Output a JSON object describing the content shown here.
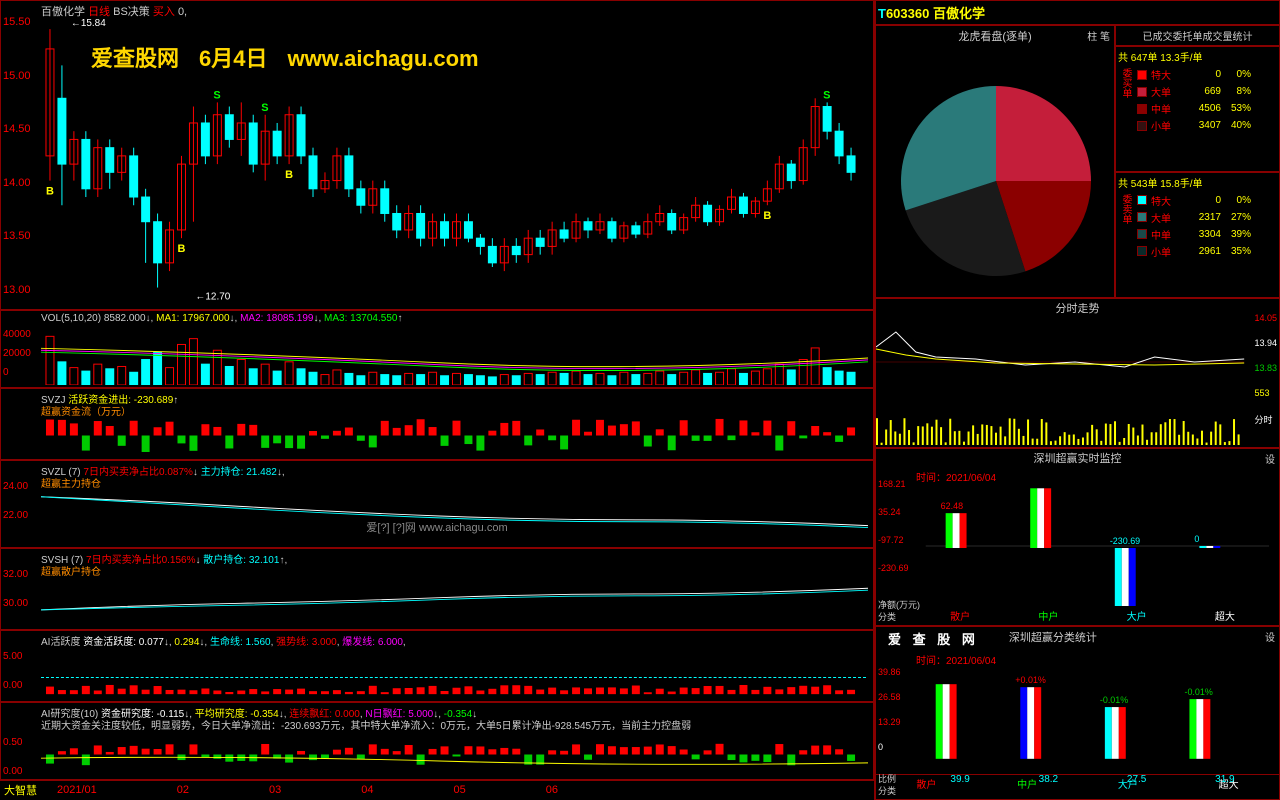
{
  "stock": {
    "code": "603360",
    "name": "百傲化学"
  },
  "watermark": {
    "site": "爱查股网",
    "date": "6月4日",
    "url": "www.aichagu.com"
  },
  "kline": {
    "title": "百傲化学",
    "period": "日线",
    "strategy": "BS决策",
    "action": "买入",
    "val": "0,",
    "yaxis": [
      "15.50",
      "15.00",
      "14.50",
      "14.00",
      "13.50",
      "13.00"
    ],
    "high_label": "15.84",
    "low_label": "12.70",
    "colors": {
      "up": "#ff0000",
      "down": "#00ffff",
      "bg": "#000000",
      "grid": "#333333"
    },
    "candles": [
      {
        "o": 14.3,
        "c": 15.6,
        "h": 15.84,
        "l": 14.0,
        "up": true
      },
      {
        "o": 15.0,
        "c": 14.2,
        "h": 15.4,
        "l": 13.7,
        "up": false
      },
      {
        "o": 14.2,
        "c": 14.5,
        "h": 14.6,
        "l": 14.0,
        "up": true
      },
      {
        "o": 14.5,
        "c": 13.9,
        "h": 14.6,
        "l": 13.8,
        "up": false
      },
      {
        "o": 13.9,
        "c": 14.4,
        "h": 14.5,
        "l": 13.8,
        "up": true
      },
      {
        "o": 14.4,
        "c": 14.1,
        "h": 14.5,
        "l": 13.9,
        "up": false
      },
      {
        "o": 14.1,
        "c": 14.3,
        "h": 14.4,
        "l": 14.0,
        "up": true
      },
      {
        "o": 14.3,
        "c": 13.8,
        "h": 14.4,
        "l": 13.7,
        "up": false
      },
      {
        "o": 13.8,
        "c": 13.5,
        "h": 13.9,
        "l": 13.0,
        "up": false
      },
      {
        "o": 13.5,
        "c": 13.0,
        "h": 13.6,
        "l": 12.7,
        "up": false
      },
      {
        "o": 13.0,
        "c": 13.4,
        "h": 13.5,
        "l": 12.9,
        "up": true
      },
      {
        "o": 13.4,
        "c": 14.2,
        "h": 14.3,
        "l": 13.3,
        "up": true
      },
      {
        "o": 14.2,
        "c": 14.7,
        "h": 14.9,
        "l": 13.5,
        "up": true
      },
      {
        "o": 14.7,
        "c": 14.3,
        "h": 14.8,
        "l": 14.2,
        "up": false
      },
      {
        "o": 14.3,
        "c": 14.8,
        "h": 14.95,
        "l": 14.2,
        "up": true
      },
      {
        "o": 14.8,
        "c": 14.5,
        "h": 14.9,
        "l": 14.4,
        "up": false
      },
      {
        "o": 14.5,
        "c": 14.7,
        "h": 14.95,
        "l": 14.3,
        "up": true
      },
      {
        "o": 14.7,
        "c": 14.2,
        "h": 14.8,
        "l": 14.1,
        "up": false
      },
      {
        "o": 14.2,
        "c": 14.6,
        "h": 14.8,
        "l": 14.0,
        "up": true
      },
      {
        "o": 14.6,
        "c": 14.3,
        "h": 14.7,
        "l": 14.2,
        "up": false
      },
      {
        "o": 14.3,
        "c": 14.8,
        "h": 14.9,
        "l": 14.2,
        "up": true
      },
      {
        "o": 14.8,
        "c": 14.3,
        "h": 14.9,
        "l": 14.2,
        "up": false
      },
      {
        "o": 14.3,
        "c": 13.9,
        "h": 14.4,
        "l": 13.8,
        "up": false
      },
      {
        "o": 13.9,
        "c": 14.0,
        "h": 14.1,
        "l": 13.85,
        "up": true
      },
      {
        "o": 14.0,
        "c": 14.3,
        "h": 14.4,
        "l": 13.9,
        "up": true
      },
      {
        "o": 14.3,
        "c": 13.9,
        "h": 14.4,
        "l": 13.8,
        "up": false
      },
      {
        "o": 13.9,
        "c": 13.7,
        "h": 14.0,
        "l": 13.6,
        "up": false
      },
      {
        "o": 13.7,
        "c": 13.9,
        "h": 14.0,
        "l": 13.6,
        "up": true
      },
      {
        "o": 13.9,
        "c": 13.6,
        "h": 14.0,
        "l": 13.5,
        "up": false
      },
      {
        "o": 13.6,
        "c": 13.4,
        "h": 13.7,
        "l": 13.3,
        "up": false
      },
      {
        "o": 13.4,
        "c": 13.6,
        "h": 13.7,
        "l": 13.3,
        "up": true
      },
      {
        "o": 13.6,
        "c": 13.3,
        "h": 13.7,
        "l": 13.2,
        "up": false
      },
      {
        "o": 13.3,
        "c": 13.5,
        "h": 13.6,
        "l": 13.2,
        "up": true
      },
      {
        "o": 13.5,
        "c": 13.3,
        "h": 13.6,
        "l": 13.2,
        "up": false
      },
      {
        "o": 13.3,
        "c": 13.5,
        "h": 13.6,
        "l": 13.2,
        "up": true
      },
      {
        "o": 13.5,
        "c": 13.3,
        "h": 13.6,
        "l": 13.25,
        "up": false
      },
      {
        "o": 13.3,
        "c": 13.2,
        "h": 13.35,
        "l": 13.1,
        "up": false
      },
      {
        "o": 13.2,
        "c": 13.0,
        "h": 13.3,
        "l": 12.95,
        "up": false
      },
      {
        "o": 13.0,
        "c": 13.2,
        "h": 13.3,
        "l": 12.9,
        "up": true
      },
      {
        "o": 13.2,
        "c": 13.1,
        "h": 13.3,
        "l": 13.0,
        "up": false
      },
      {
        "o": 13.1,
        "c": 13.3,
        "h": 13.4,
        "l": 13.0,
        "up": true
      },
      {
        "o": 13.3,
        "c": 13.2,
        "h": 13.4,
        "l": 13.1,
        "up": false
      },
      {
        "o": 13.2,
        "c": 13.4,
        "h": 13.5,
        "l": 13.1,
        "up": true
      },
      {
        "o": 13.4,
        "c": 13.3,
        "h": 13.5,
        "l": 13.25,
        "up": false
      },
      {
        "o": 13.3,
        "c": 13.5,
        "h": 13.6,
        "l": 13.25,
        "up": true
      },
      {
        "o": 13.5,
        "c": 13.4,
        "h": 13.55,
        "l": 13.3,
        "up": false
      },
      {
        "o": 13.4,
        "c": 13.5,
        "h": 13.6,
        "l": 13.35,
        "up": true
      },
      {
        "o": 13.5,
        "c": 13.3,
        "h": 13.55,
        "l": 13.25,
        "up": false
      },
      {
        "o": 13.3,
        "c": 13.45,
        "h": 13.5,
        "l": 13.25,
        "up": true
      },
      {
        "o": 13.45,
        "c": 13.35,
        "h": 13.5,
        "l": 13.3,
        "up": false
      },
      {
        "o": 13.35,
        "c": 13.5,
        "h": 13.6,
        "l": 13.3,
        "up": true
      },
      {
        "o": 13.5,
        "c": 13.6,
        "h": 13.7,
        "l": 13.45,
        "up": true
      },
      {
        "o": 13.6,
        "c": 13.4,
        "h": 13.65,
        "l": 13.35,
        "up": false
      },
      {
        "o": 13.4,
        "c": 13.55,
        "h": 13.6,
        "l": 13.35,
        "up": true
      },
      {
        "o": 13.55,
        "c": 13.7,
        "h": 13.8,
        "l": 13.5,
        "up": true
      },
      {
        "o": 13.7,
        "c": 13.5,
        "h": 13.75,
        "l": 13.45,
        "up": false
      },
      {
        "o": 13.5,
        "c": 13.65,
        "h": 13.7,
        "l": 13.45,
        "up": true
      },
      {
        "o": 13.65,
        "c": 13.8,
        "h": 13.9,
        "l": 13.6,
        "up": true
      },
      {
        "o": 13.8,
        "c": 13.6,
        "h": 13.85,
        "l": 13.55,
        "up": false
      },
      {
        "o": 13.6,
        "c": 13.75,
        "h": 13.8,
        "l": 13.55,
        "up": true
      },
      {
        "o": 13.75,
        "c": 13.9,
        "h": 14.0,
        "l": 13.7,
        "up": true
      },
      {
        "o": 13.9,
        "c": 14.2,
        "h": 14.3,
        "l": 13.85,
        "up": true
      },
      {
        "o": 14.2,
        "c": 14.0,
        "h": 14.25,
        "l": 13.9,
        "up": false
      },
      {
        "o": 14.0,
        "c": 14.4,
        "h": 14.5,
        "l": 13.95,
        "up": true
      },
      {
        "o": 14.4,
        "c": 14.9,
        "h": 15.0,
        "l": 14.3,
        "up": true
      },
      {
        "o": 14.9,
        "c": 14.6,
        "h": 14.95,
        "l": 14.5,
        "up": false
      },
      {
        "o": 14.6,
        "c": 14.3,
        "h": 14.7,
        "l": 14.2,
        "up": false
      },
      {
        "o": 14.3,
        "c": 14.1,
        "h": 14.4,
        "l": 14.0,
        "up": false
      }
    ]
  },
  "vol": {
    "label": "VOL(5,10,20)",
    "val": "8582.000",
    "ma1_lbl": "MA1:",
    "ma1": "17967.000",
    "ma2_lbl": "MA2:",
    "ma2": "18085.199",
    "ma3_lbl": "MA3:",
    "ma3": "13704.550",
    "yaxis": [
      "40000",
      "20000",
      "0"
    ],
    "bars": [
      42,
      20,
      15,
      12,
      18,
      14,
      16,
      11,
      22,
      28,
      15,
      35,
      40,
      18,
      30,
      16,
      22,
      14,
      18,
      12,
      20,
      14,
      11,
      9,
      13,
      10,
      8,
      11,
      9,
      8,
      10,
      9,
      11,
      8,
      10,
      9,
      8,
      7,
      9,
      8,
      10,
      9,
      11,
      10,
      12,
      9,
      10,
      8,
      11,
      9,
      10,
      12,
      9,
      11,
      13,
      10,
      11,
      14,
      10,
      12,
      14,
      18,
      13,
      22,
      32,
      15,
      12,
      11
    ],
    "bar_up": [
      1,
      0,
      1,
      0,
      1,
      0,
      1,
      0,
      0,
      0,
      1,
      1,
      1,
      0,
      1,
      0,
      1,
      0,
      1,
      0,
      1,
      0,
      0,
      1,
      1,
      0,
      0,
      1,
      0,
      0,
      1,
      0,
      1,
      0,
      1,
      0,
      0,
      0,
      1,
      0,
      1,
      0,
      1,
      0,
      1,
      0,
      1,
      0,
      1,
      0,
      1,
      1,
      0,
      1,
      1,
      0,
      1,
      1,
      0,
      1,
      1,
      1,
      0,
      1,
      1,
      0,
      0,
      0
    ]
  },
  "svzj": {
    "label": "SVZJ",
    "t1": "活跃资金进出:",
    "v1": "-230.689",
    "sub": "超赢资金流（万元）"
  },
  "svzl": {
    "label": "SVZL (7)",
    "t1": "7日内买卖净占比",
    "v1": "0.087%",
    "t2": "主力持仓:",
    "v2": "21.482",
    "sub": "超赢主力持仓",
    "yaxis": [
      "24.00",
      "22.00"
    ]
  },
  "svsh": {
    "label": "SVSH (7)",
    "t1": "7日内买卖净占比",
    "v1": "0.156%",
    "t2": "散户持仓:",
    "v2": "32.101",
    "sub": "超赢散户持仓",
    "yaxis": [
      "32.00",
      "30.00"
    ]
  },
  "aihy": {
    "label": "AI活跃度",
    "t1": "资金活跃度:",
    "v1": "0.077",
    "v2": "0.294",
    "t3": "生命线:",
    "v3": "1.560",
    "t4": "强势线:",
    "v4": "3.000",
    "t5": "爆发线:",
    "v5": "6.000",
    "yaxis": [
      "5.00",
      "0.00"
    ]
  },
  "aiyj": {
    "label": "AI研究度(10)",
    "t1": "资金研究度:",
    "v1": "-0.115",
    "t2": "平均研究度:",
    "v2": "-0.354",
    "t3": "连续飘红:",
    "v3": "0.000",
    "t4": "N日飘红:",
    "v4": "5.000",
    "v5": "-0.354",
    "txt": "近期大资金关注度较低，明显弱势，今日大单净流出：-230.693万元，其中特大单净流入：0万元，大单5日累计净出-928.545万元，当前主力控盘弱",
    "yaxis": [
      "0.50",
      "0.00"
    ]
  },
  "footer": {
    "app": "大智慧",
    "months": [
      "2021/01",
      "02",
      "03",
      "04",
      "05",
      "06"
    ]
  },
  "pie": {
    "title": "龙虎看盘(逐单)",
    "opts": "柱  笔",
    "slices": [
      {
        "color": "#c41e3a",
        "pct": 25,
        "start": 0
      },
      {
        "color": "#8b0000",
        "pct": 20,
        "start": 25
      },
      {
        "color": "#1a1a1a",
        "pct": 25,
        "start": 45
      },
      {
        "color": "#2a7a7a",
        "pct": 30,
        "start": 70
      }
    ]
  },
  "buystats": {
    "title": "已成交委托单成交量统计",
    "hdr": "共 647单 13.3手/单",
    "side": "委买单",
    "rows": [
      {
        "c": "#ff0000",
        "lbl": "特大",
        "v1": "0",
        "v2": "0%"
      },
      {
        "c": "#c41e3a",
        "lbl": "大单",
        "v1": "669",
        "v2": "8%"
      },
      {
        "c": "#8b0000",
        "lbl": "中单",
        "v1": "4506",
        "v2": "53%"
      },
      {
        "c": "#331111",
        "lbl": "小单",
        "v1": "3407",
        "v2": "40%"
      }
    ]
  },
  "sellstats": {
    "hdr": "共 543单 15.8手/单",
    "side": "委卖单",
    "rows": [
      {
        "c": "#00ffff",
        "lbl": "特大",
        "v1": "0",
        "v2": "0%"
      },
      {
        "c": "#2a7a7a",
        "lbl": "大单",
        "v1": "2317",
        "v2": "27%"
      },
      {
        "c": "#1a4a4a",
        "lbl": "中单",
        "v1": "3304",
        "v2": "39%"
      },
      {
        "c": "#0a2a2a",
        "lbl": "小单",
        "v1": "2961",
        "v2": "35%"
      }
    ]
  },
  "fenshi": {
    "title": "分时走势",
    "yaxis": [
      {
        "v": "14.05",
        "c": "r"
      },
      {
        "v": "13.94",
        "c": "w"
      },
      {
        "v": "13.83",
        "c": "g"
      },
      {
        "v": "553",
        "c": "y"
      },
      {
        "v": "分时",
        "c": "w"
      }
    ]
  },
  "sz1": {
    "title": "深圳超赢实时监控",
    "time": "时间：2021/06/04",
    "set": "设",
    "yaxis": [
      "168.21",
      "35.24",
      "-97.72",
      "-230.69"
    ],
    "bars": [
      {
        "lbl": "散户",
        "v": "62.48",
        "c1": "#0f0",
        "c2": "#fff",
        "c3": "#f00",
        "h": 35,
        "y": 55
      },
      {
        "lbl": "中户",
        "v": "168.21",
        "c1": "#0f0",
        "c2": "#fff",
        "c3": "#f00",
        "h": 60,
        "y": 30
      },
      {
        "lbl": "大户",
        "v": "-230.69",
        "c1": "#0ff",
        "c2": "#fff",
        "c3": "#00f",
        "h": 60,
        "y": 90
      },
      {
        "lbl": "超大",
        "v": "0",
        "c1": "#0ff",
        "c2": "#fff",
        "c3": "#00f",
        "h": 2,
        "y": 88
      }
    ],
    "bottom": "净额(万元)",
    "cat": "分类"
  },
  "sz2": {
    "t1": "爱 查 股 网",
    "t2": "深圳超赢分类统计",
    "time": "时间：2021/06/04",
    "set": "设",
    "yaxis": [
      "39.86",
      "26.58",
      "13.29",
      "0"
    ],
    "bars": [
      {
        "lbl": "散户",
        "v": "39.9",
        "pct": "",
        "c1": "#0f0",
        "c2": "#fff",
        "c3": "#f00",
        "h": 75
      },
      {
        "lbl": "中户",
        "v": "38.2",
        "pct": "+0.01%",
        "c1": "#00f",
        "c2": "#fff",
        "c3": "#f00",
        "h": 72
      },
      {
        "lbl": "大户",
        "v": "27.5",
        "pct": "-0.01%",
        "c1": "#0ff",
        "c2": "#fff",
        "c3": "#f00",
        "h": 52
      },
      {
        "lbl": "超大",
        "v": "31.9",
        "pct": "-0.01%",
        "c1": "#0f0",
        "c2": "#fff",
        "c3": "#f00",
        "h": 60
      }
    ],
    "bottom": "比例",
    "cat": "分类"
  },
  "watermark2": {
    "txt": "爱[?]   [?]网      www.aichagu.com"
  }
}
